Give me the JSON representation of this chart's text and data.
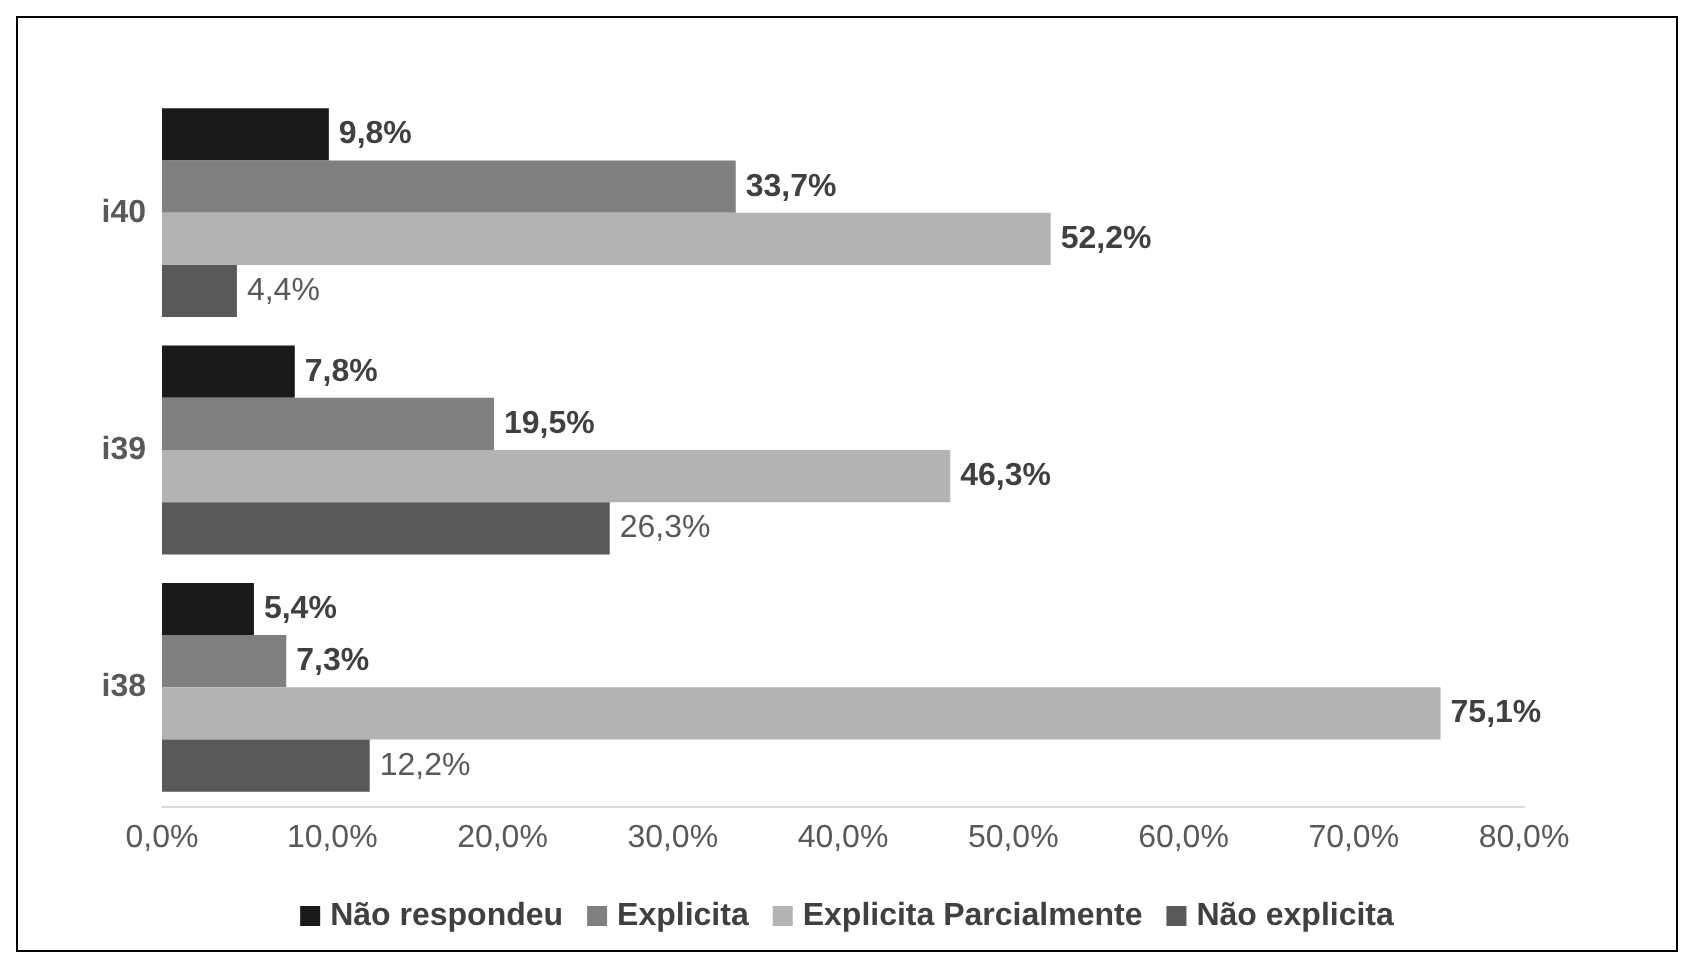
{
  "chart_data": {
    "type": "bar",
    "orientation": "horizontal",
    "categories": [
      "i40",
      "i39",
      "i38"
    ],
    "series": [
      {
        "name": "Não respondeu",
        "color": "#1a1a1a",
        "values": [
          9.8,
          7.8,
          5.4
        ],
        "value_labels": [
          "9,8%",
          "7,8%",
          "5,4%"
        ]
      },
      {
        "name": "Explicita",
        "color": "#808080",
        "values": [
          33.7,
          19.5,
          7.3
        ],
        "value_labels": [
          "33,7%",
          "19,5%",
          "7,3%"
        ]
      },
      {
        "name": "Explicita Parcialmente",
        "color": "#b3b3b3",
        "values": [
          52.2,
          46.3,
          75.1
        ],
        "value_labels": [
          "52,2%",
          "46,3%",
          "75,1%"
        ]
      },
      {
        "name": "Não explicita",
        "color": "#595959",
        "values": [
          4.4,
          26.3,
          12.2
        ],
        "value_labels": [
          "4,4%",
          "26,3%",
          "12,2%"
        ]
      }
    ],
    "xlim": [
      0,
      80
    ],
    "xticks": [
      {
        "value": 0,
        "label": "0,0%"
      },
      {
        "value": 10,
        "label": "10,0%"
      },
      {
        "value": 20,
        "label": "20,0%"
      },
      {
        "value": 30,
        "label": "30,0%"
      },
      {
        "value": 40,
        "label": "40,0%"
      },
      {
        "value": 50,
        "label": "50,0%"
      },
      {
        "value": 60,
        "label": "60,0%"
      },
      {
        "value": 70,
        "label": "70,0%"
      },
      {
        "value": 80,
        "label": "80,0%"
      }
    ],
    "grid": false,
    "legend": "bottom"
  }
}
